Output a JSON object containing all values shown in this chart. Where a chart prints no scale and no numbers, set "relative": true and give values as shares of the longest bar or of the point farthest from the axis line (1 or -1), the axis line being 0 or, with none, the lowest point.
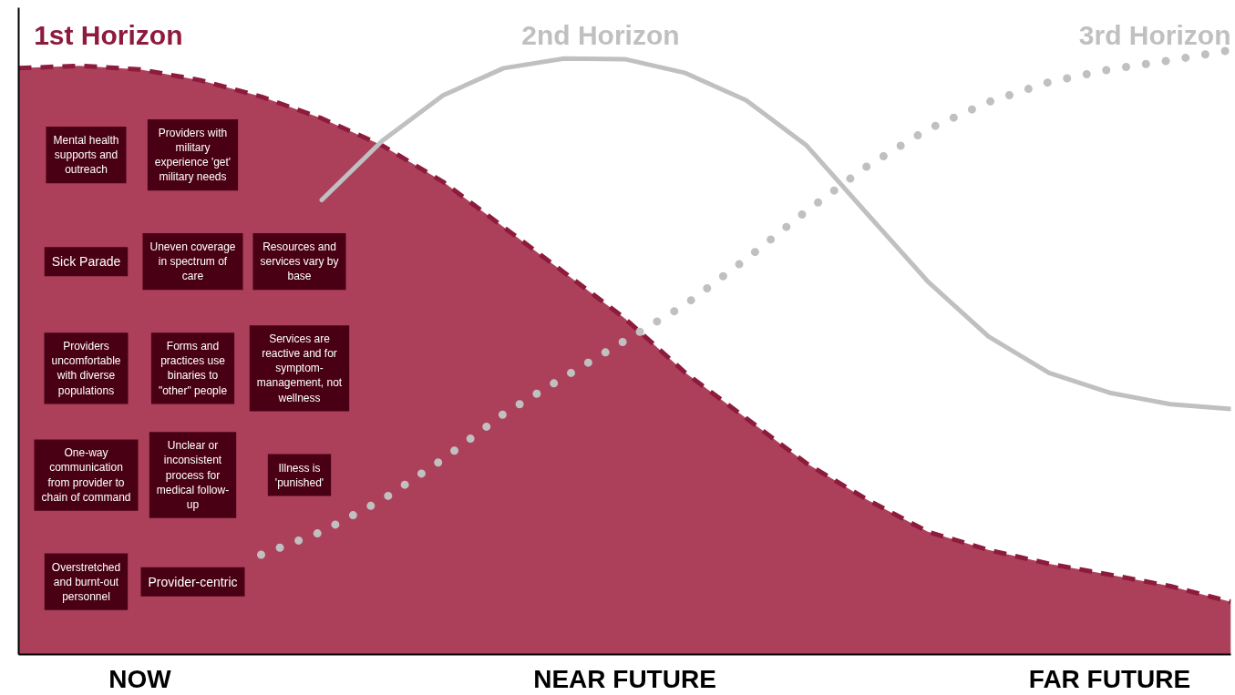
{
  "chart_data": {
    "type": "line",
    "relative": true,
    "categories": [
      null,
      null,
      "NOW",
      null,
      null,
      null,
      null,
      null,
      null,
      null,
      "NEAR FUTURE",
      null,
      null,
      null,
      null,
      null,
      null,
      null,
      "FAR FUTURE",
      null,
      null
    ],
    "series": [
      {
        "name": "1st Horizon",
        "type": "area",
        "color": "#a6324f",
        "line_style": "dashed",
        "values": [
          0.97,
          0.974,
          0.968,
          0.95,
          0.923,
          0.887,
          0.842,
          0.782,
          0.707,
          0.632,
          0.556,
          0.466,
          0.391,
          0.316,
          0.256,
          0.203,
          0.173,
          0.15,
          0.132,
          0.113,
          0.087
        ]
      },
      {
        "name": "2nd Horizon",
        "color": "#c0c0c0",
        "line_style": "solid",
        "values": [
          null,
          null,
          null,
          null,
          null,
          0.752,
          0.85,
          0.925,
          0.97,
          0.986,
          0.985,
          0.962,
          0.917,
          0.842,
          0.729,
          0.617,
          0.526,
          0.466,
          0.433,
          0.414,
          0.406
        ]
      },
      {
        "name": "3rd Horizon",
        "color": "#c0c0c0",
        "line_style": "dotted",
        "values": [
          null,
          null,
          null,
          null,
          0.165,
          0.203,
          0.256,
          0.323,
          0.398,
          0.459,
          0.519,
          0.579,
          0.654,
          0.734,
          0.808,
          0.869,
          0.914,
          0.947,
          0.968,
          0.983,
          1.0
        ]
      }
    ],
    "annotations": [
      "Mental health supports and outreach",
      "Providers with military experience 'get' military needs",
      "Sick Parade",
      "Uneven coverage in spectrum of care",
      "Resources and services vary by base",
      "Providers uncomfortable with diverse populations",
      "Forms and practices use binaries to \"other\" people",
      "Services are reactive and for symptom-management, not wellness",
      "One-way communication from provider to chain of command",
      "Unclear or inconsistent process for medical follow-up",
      "Illness is 'punished'",
      "Overstretched and burnt-out personnel",
      "Provider-centric"
    ],
    "marker": "none",
    "grid": false,
    "tick_labels": "x"
  }
}
